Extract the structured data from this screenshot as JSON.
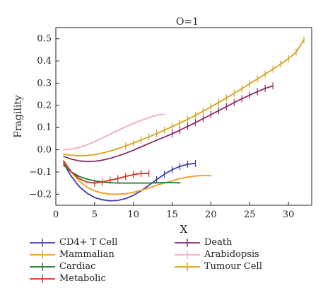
{
  "chart_data": {
    "type": "line",
    "title": "O=1",
    "xlabel": "X",
    "ylabel": "Fragility",
    "xlim": [
      0,
      33
    ],
    "ylim": [
      -0.25,
      0.55
    ],
    "xticks": [
      0,
      5,
      10,
      15,
      20,
      25,
      30
    ],
    "yticks": [
      -0.2,
      -0.1,
      0.0,
      0.1,
      0.2,
      0.3,
      0.4,
      0.5
    ],
    "xtick_labels": [
      "0",
      "5",
      "10",
      "15",
      "20",
      "25",
      "30"
    ],
    "ytick_labels": [
      "−0.2",
      "−0.1",
      "0.0",
      "0.1",
      "0.2",
      "0.3",
      "0.4",
      "0.5"
    ],
    "grid": false,
    "legend_position": "below",
    "series": [
      {
        "name": "CD4+ T Cell",
        "color": "#3b3bb0",
        "errorbars": [
          13,
          14,
          15,
          16,
          17,
          18
        ],
        "x": [
          1,
          2,
          3,
          4,
          5,
          6,
          7,
          8,
          9,
          10,
          11,
          12,
          13,
          14,
          15,
          16,
          17,
          18
        ],
        "y": [
          -0.06,
          -0.12,
          -0.165,
          -0.195,
          -0.215,
          -0.225,
          -0.23,
          -0.228,
          -0.22,
          -0.205,
          -0.185,
          -0.16,
          -0.135,
          -0.11,
          -0.09,
          -0.075,
          -0.065,
          -0.062
        ]
      },
      {
        "name": "Mammalian",
        "color": "#f39a1e",
        "errorbars": [],
        "x": [
          1,
          2,
          3,
          4,
          5,
          6,
          7,
          8,
          9,
          10,
          11,
          12,
          13,
          14,
          15,
          16,
          17,
          18,
          19,
          20
        ],
        "y": [
          -0.055,
          -0.1,
          -0.14,
          -0.168,
          -0.185,
          -0.195,
          -0.2,
          -0.2,
          -0.198,
          -0.192,
          -0.183,
          -0.172,
          -0.16,
          -0.15,
          -0.14,
          -0.13,
          -0.123,
          -0.118,
          -0.116,
          -0.117
        ]
      },
      {
        "name": "Cardiac",
        "color": "#1f7a2e",
        "errorbars": [],
        "x": [
          1,
          2,
          3,
          4,
          5,
          6,
          7,
          8,
          9,
          10,
          11,
          12,
          13,
          14,
          15,
          16
        ],
        "y": [
          -0.07,
          -0.1,
          -0.12,
          -0.132,
          -0.14,
          -0.145,
          -0.148,
          -0.15,
          -0.15,
          -0.15,
          -0.15,
          -0.15,
          -0.149,
          -0.148,
          -0.148,
          -0.149
        ]
      },
      {
        "name": "Metabolic",
        "color": "#d62f1e",
        "errorbars": [
          5,
          6,
          7,
          8,
          9,
          10,
          11,
          12
        ],
        "x": [
          1,
          2,
          3,
          4,
          5,
          6,
          7,
          8,
          9,
          10,
          11,
          12
        ],
        "y": [
          -0.05,
          -0.1,
          -0.13,
          -0.145,
          -0.15,
          -0.145,
          -0.137,
          -0.13,
          -0.12,
          -0.112,
          -0.107,
          -0.106
        ]
      },
      {
        "name": "Death",
        "color": "#8a2a6e",
        "errorbars": [
          15,
          16,
          17,
          18,
          19,
          20,
          21,
          22,
          23,
          24,
          25,
          26,
          27,
          28
        ],
        "x": [
          1,
          2,
          3,
          4,
          5,
          6,
          7,
          8,
          9,
          10,
          11,
          12,
          13,
          14,
          15,
          16,
          17,
          18,
          19,
          20,
          21,
          22,
          23,
          24,
          25,
          26,
          27,
          28
        ],
        "y": [
          -0.03,
          -0.042,
          -0.05,
          -0.053,
          -0.052,
          -0.047,
          -0.039,
          -0.028,
          -0.016,
          -0.002,
          0.013,
          0.028,
          0.043,
          0.057,
          0.072,
          0.088,
          0.105,
          0.122,
          0.14,
          0.158,
          0.176,
          0.194,
          0.212,
          0.23,
          0.246,
          0.262,
          0.276,
          0.288
        ]
      },
      {
        "name": "Arabidopsis",
        "color": "#f4a9c2",
        "errorbars": [],
        "x": [
          1,
          2,
          3,
          4,
          5,
          6,
          7,
          8,
          9,
          10,
          11,
          12,
          13,
          14
        ],
        "y": [
          0.0,
          0.003,
          0.01,
          0.022,
          0.037,
          0.053,
          0.07,
          0.087,
          0.103,
          0.118,
          0.132,
          0.145,
          0.156,
          0.16
        ]
      },
      {
        "name": "Tumour Cell",
        "color": "#d4a21c",
        "errorbars": [
          9,
          10,
          11,
          12,
          13,
          14,
          15,
          16,
          17,
          18,
          19,
          20,
          21,
          22,
          23,
          24,
          25,
          26,
          27,
          28,
          29,
          30,
          31,
          32
        ],
        "x": [
          1,
          2,
          3,
          4,
          5,
          6,
          7,
          8,
          9,
          10,
          11,
          12,
          13,
          14,
          15,
          16,
          17,
          18,
          19,
          20,
          21,
          22,
          23,
          24,
          25,
          26,
          27,
          28,
          29,
          30,
          31,
          32
        ],
        "y": [
          -0.02,
          -0.025,
          -0.027,
          -0.026,
          -0.022,
          -0.015,
          -0.006,
          0.005,
          0.017,
          0.03,
          0.044,
          0.058,
          0.073,
          0.088,
          0.104,
          0.12,
          0.137,
          0.155,
          0.174,
          0.193,
          0.213,
          0.233,
          0.254,
          0.275,
          0.297,
          0.319,
          0.341,
          0.363,
          0.386,
          0.41,
          0.44,
          0.495
        ]
      }
    ],
    "legend_columns": [
      [
        "CD4+ T Cell",
        "Mammalian",
        "Cardiac",
        "Metabolic"
      ],
      [
        "Death",
        "Arabidopsis",
        "Tumour Cell"
      ]
    ]
  }
}
